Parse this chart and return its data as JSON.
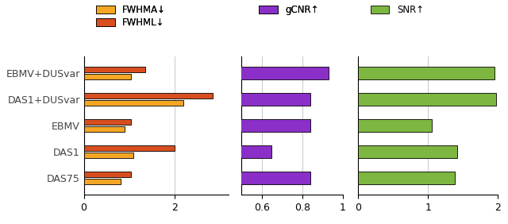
{
  "categories": [
    "EBMV+DUSvar",
    "DAS1+DUSvar",
    "EBMV",
    "DAS1",
    "DAS75"
  ],
  "FWHMA": [
    1.05,
    2.2,
    0.9,
    1.1,
    0.82
  ],
  "FWHML": [
    1.35,
    2.85,
    1.05,
    2.0,
    1.05
  ],
  "gCNR": [
    0.93,
    0.84,
    0.84,
    0.65,
    0.84
  ],
  "SNR": [
    1.95,
    1.97,
    1.05,
    1.42,
    1.38
  ],
  "color_FWHMA": "#F5A623",
  "color_FWHML": "#D94E1F",
  "color_gCNR": "#8B2FC9",
  "color_SNR": "#7DB641",
  "fwhm_xlim": [
    0,
    3.2
  ],
  "gcnr_xlim": [
    0.5,
    1.0
  ],
  "snr_xlim": [
    0,
    2.0
  ],
  "fwhm_xticks": [
    0,
    2
  ],
  "gcnr_xticks": [
    0.6,
    0.8,
    1
  ],
  "snr_xticks": [
    0,
    1,
    2
  ],
  "legend_labels": [
    "FWHMA↓",
    "FWHML↓",
    "gCNR↑",
    "SNR↑"
  ]
}
